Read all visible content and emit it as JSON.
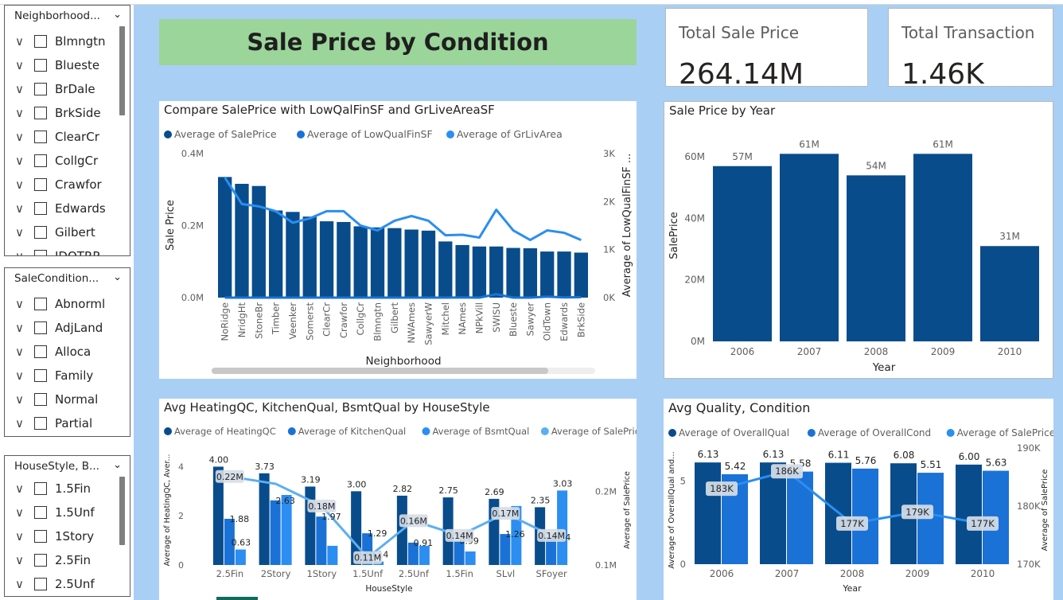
{
  "colors": {
    "dark_blue": "#094c8c",
    "mid_blue": "#1a72d6",
    "light_blue": "#2b8ef0",
    "pale_blue": "#5caef2",
    "canvas": "#a9cff5",
    "banner": "#9bd59a"
  },
  "slicers": [
    {
      "title": "Neighborhood...",
      "items": [
        "Blmngtn",
        "Blueste",
        "BrDale",
        "BrkSide",
        "ClearCr",
        "CollgCr",
        "Crawfor",
        "Edwards",
        "Gilbert",
        "IDOTRR"
      ]
    },
    {
      "title": "SaleCondition...",
      "items": [
        "Abnorml",
        "AdjLand",
        "Alloca",
        "Family",
        "Normal",
        "Partial"
      ]
    },
    {
      "title": "HouseStyle, B...",
      "items": [
        "1.5Fin",
        "1.5Unf",
        "1Story",
        "2.5Fin",
        "2.5Unf"
      ]
    }
  ],
  "banner": {
    "title": "Sale Price by Condition"
  },
  "kpis": [
    {
      "label": "Total Sale Price",
      "value": "264.14M"
    },
    {
      "label": "Total Transaction",
      "value": "1.46K"
    }
  ],
  "charts": {
    "compare": {
      "title": "Compare SalePrice with LowQalFinSF and GrLiveAreaSF",
      "legend": [
        "Average of SalePrice",
        "Average of LowQualFinSF",
        "Average of GrLivArea"
      ],
      "xlabel": "Neighborhood",
      "ylabel": "Sale Price",
      "y2label": "Average of LowQualFinSF ...",
      "yticks": [
        "0.0M",
        "0.2M",
        "0.4M"
      ],
      "y2ticks": [
        "0K",
        "1K",
        "2K",
        "3K"
      ]
    },
    "year": {
      "title": "Sale Price by Year",
      "xlabel": "Year",
      "ylabel": "SalePrice",
      "yticks": [
        "0M",
        "20M",
        "40M",
        "60M"
      ]
    },
    "house": {
      "title": "Avg HeatingQC, KitchenQual, BsmtQual by HouseStyle",
      "legend": [
        "Average of HeatingQC",
        "Average of KitchenQual",
        "Average of BsmtQual",
        "Average of SalePrice"
      ],
      "xlabel": "HouseStyle",
      "ylabel": "Average of HeatingQC, Aver...",
      "y2label": "Average of SalePrice",
      "yticks": [
        "0",
        "2",
        "4"
      ],
      "y2ticks": [
        "0.1M",
        "0.2M"
      ]
    },
    "quality": {
      "title": "Avg Quality, Condition",
      "legend": [
        "Average of OverallQual",
        "Average of OverallCond",
        "Average of SalePrice"
      ],
      "xlabel": "Year",
      "ylabel": "Average of OverallQual and...",
      "y2label": "Average of SalePrice",
      "yticks": [
        "0",
        "5"
      ],
      "y2ticks": [
        "170K",
        "180K",
        "190K"
      ]
    }
  },
  "chart_data": [
    {
      "type": "bar",
      "title": "Compare SalePrice with LowQalFinSF and GrLiveAreaSF",
      "xlabel": "Neighborhood",
      "ylabel": "Sale Price",
      "categories": [
        "NoRidge",
        "NridgHt",
        "StoneBr",
        "Timber",
        "Veenker",
        "Somerst",
        "ClearCr",
        "Crawfor",
        "CollgCr",
        "Blmngtn",
        "Gilbert",
        "NWAmes",
        "SawyerW",
        "Mitchel",
        "NAmes",
        "NPkVill",
        "SWISU",
        "Blueste",
        "Sawyer",
        "OldTown",
        "Edwards",
        "BrkSide"
      ],
      "ylim": [
        0,
        400000
      ],
      "y2lim": [
        0,
        3000
      ],
      "series": [
        {
          "name": "Average of SalePrice",
          "type": "bar",
          "axis": "y",
          "values": [
            335000,
            316000,
            310000,
            242000,
            238000,
            225000,
            212000,
            210000,
            198000,
            195000,
            193000,
            189000,
            186000,
            156000,
            146000,
            142000,
            142000,
            138000,
            137000,
            128000,
            128000,
            125000
          ]
        },
        {
          "name": "Average of LowQualFinSF",
          "type": "line",
          "axis": "y2",
          "values": [
            0,
            0,
            0,
            0,
            0,
            0,
            0,
            0,
            0,
            0,
            0,
            0,
            0,
            0,
            5,
            0,
            70,
            0,
            0,
            20,
            5,
            10
          ]
        },
        {
          "name": "Average of GrLivArea",
          "type": "line",
          "axis": "y2",
          "values": [
            2500,
            1950,
            1900,
            1800,
            1560,
            1650,
            1800,
            1800,
            1500,
            1400,
            1600,
            1700,
            1600,
            1300,
            1310,
            1250,
            1830,
            1400,
            1200,
            1400,
            1350,
            1200
          ]
        }
      ]
    },
    {
      "type": "bar",
      "title": "Sale Price by Year",
      "xlabel": "Year",
      "ylabel": "SalePrice",
      "categories": [
        "2006",
        "2007",
        "2008",
        "2009",
        "2010"
      ],
      "values": [
        57000000,
        61000000,
        54000000,
        61000000,
        31000000
      ],
      "labels": [
        "57M",
        "61M",
        "54M",
        "61M",
        "31M"
      ],
      "ylim": [
        0,
        66000000
      ]
    },
    {
      "type": "bar",
      "title": "Avg HeatingQC, KitchenQual, BsmtQual by HouseStyle",
      "xlabel": "HouseStyle",
      "categories": [
        "2.5Fin",
        "2Story",
        "1Story",
        "1.5Unf",
        "2.5Unf",
        "1.5Fin",
        "SLvl",
        "SFoyer"
      ],
      "ylim": [
        0,
        4.5
      ],
      "y2lim": [
        0.1,
        0.25
      ],
      "series": [
        {
          "name": "Average of HeatingQC",
          "type": "bar",
          "axis": "y",
          "values": [
            4.0,
            3.73,
            3.19,
            3.0,
            2.82,
            2.75,
            2.69,
            2.35
          ],
          "labels": [
            "4.00",
            "3.73",
            "3.19",
            "3.00",
            "2.82",
            "2.75",
            "2.69",
            "2.35"
          ]
        },
        {
          "name": "Average of KitchenQual",
          "type": "bar",
          "axis": "y",
          "values": [
            1.88,
            2.63,
            1.97,
            1.29,
            0.91,
            0.99,
            1.26,
            1.14
          ],
          "labels": [
            "1.88",
            "2.63",
            "1.97",
            "1.29",
            "0.91",
            "0.99",
            "1.26",
            "1.14"
          ]
        },
        {
          "name": "Average of BsmtQual",
          "type": "bar",
          "axis": "y",
          "values": [
            0.63,
            2.85,
            0.78,
            0.14,
            0.78,
            0.55,
            2.4,
            3.03
          ],
          "labels": [
            "0.63",
            "",
            "",
            "0.14",
            "",
            "",
            "",
            "3.03"
          ]
        },
        {
          "name": "Average of SalePrice",
          "type": "line",
          "axis": "y2",
          "values": [
            220000,
            210000,
            180000,
            110000,
            160000,
            140000,
            170000,
            140000
          ],
          "labels": [
            "0.22M",
            "",
            "0.18M",
            "0.11M",
            "0.16M",
            "0.14M",
            "0.17M",
            "0.14M"
          ]
        }
      ]
    },
    {
      "type": "bar",
      "title": "Avg Quality, Condition",
      "xlabel": "Year",
      "categories": [
        "2006",
        "2007",
        "2008",
        "2009",
        "2010"
      ],
      "ylim": [
        0,
        7
      ],
      "y2lim": [
        170000,
        190000
      ],
      "series": [
        {
          "name": "Average of OverallQual",
          "type": "bar",
          "axis": "y",
          "values": [
            6.13,
            6.13,
            6.11,
            6.08,
            6.0
          ],
          "labels": [
            "6.13",
            "6.13",
            "6.11",
            "6.08",
            "6.00"
          ]
        },
        {
          "name": "Average of OverallCond",
          "type": "bar",
          "axis": "y",
          "values": [
            5.42,
            5.58,
            5.76,
            5.51,
            5.63
          ],
          "labels": [
            "5.42",
            "5.58",
            "5.76",
            "5.51",
            "5.63"
          ]
        },
        {
          "name": "Average of SalePrice",
          "type": "line",
          "axis": "y2",
          "values": [
            183000,
            186000,
            177000,
            179000,
            177000
          ],
          "labels": [
            "183K",
            "186K",
            "177K",
            "179K",
            "177K"
          ]
        }
      ]
    }
  ]
}
